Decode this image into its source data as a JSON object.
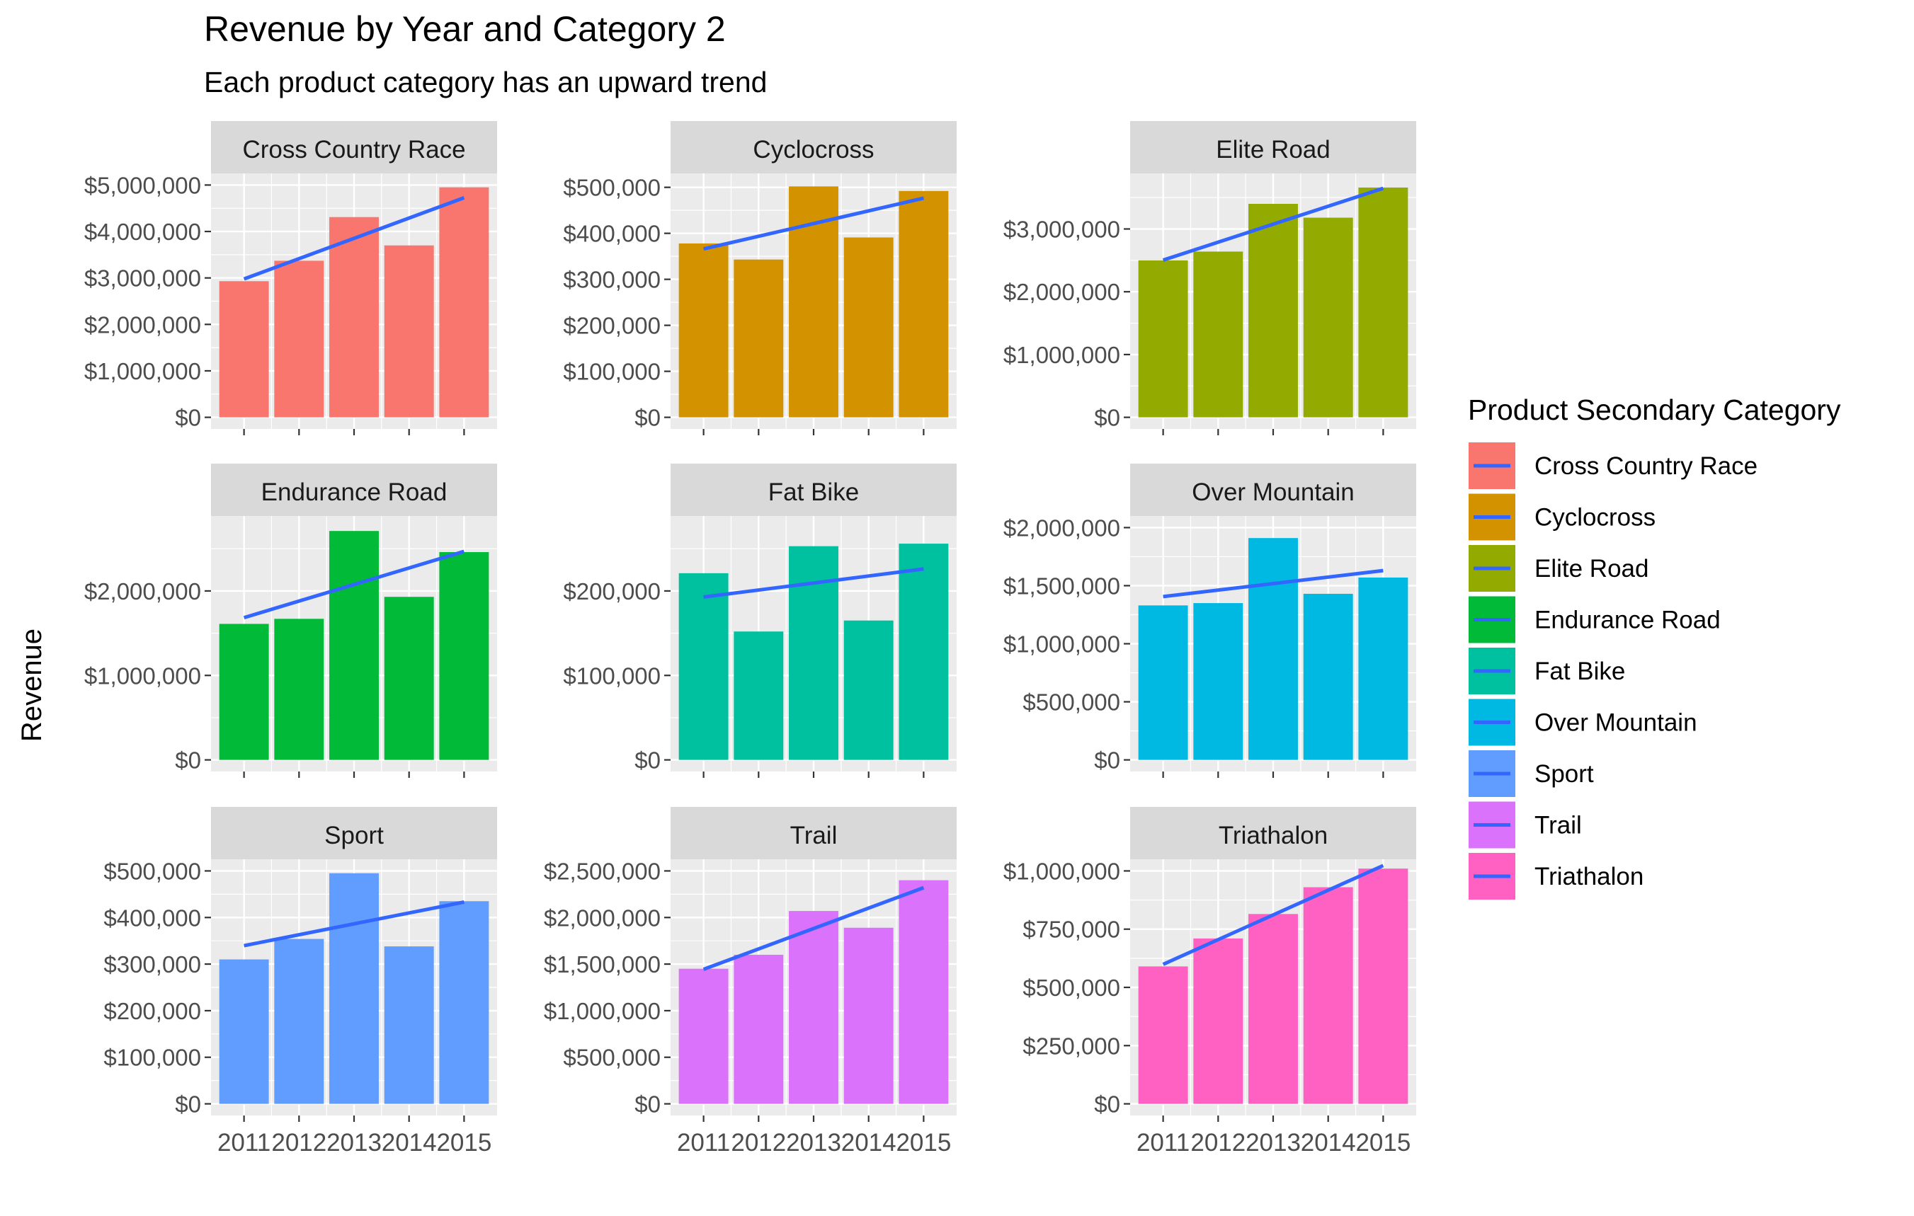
{
  "chart_data": {
    "type": "bar",
    "title": "Revenue by Year and Category 2",
    "subtitle": "Each product category has an upward trend",
    "ylabel": "Revenue",
    "xlabel": "",
    "legend": {
      "title": "Product Secondary Category",
      "placement": "right"
    },
    "categories": [
      "2011",
      "2012",
      "2013",
      "2014",
      "2015"
    ],
    "trend_line_color": "#3366FF",
    "panel_background": "#EBEBEB",
    "strip_background": "#D9D9D9",
    "series": [
      {
        "name": "Cross Country Race",
        "color": "#F8766D",
        "values": [
          2930000,
          3370000,
          4310000,
          3700000,
          4950000
        ],
        "ylim": [
          0,
          5000000
        ],
        "ticks": [
          0,
          1000000,
          2000000,
          3000000,
          4000000,
          5000000
        ],
        "tick_labels": [
          "$0",
          "$1,000,000",
          "$2,000,000",
          "$3,000,000",
          "$4,000,000",
          "$5,000,000"
        ]
      },
      {
        "name": "Cyclocross",
        "color": "#D39200",
        "values": [
          378000,
          343000,
          502000,
          391000,
          492000
        ],
        "ylim": [
          0,
          505000
        ],
        "ticks": [
          0,
          100000,
          200000,
          300000,
          400000,
          500000
        ],
        "tick_labels": [
          "$0",
          "$100,000",
          "$200,000",
          "$300,000",
          "$400,000",
          "$500,000"
        ]
      },
      {
        "name": "Elite Road",
        "color": "#93AA00",
        "values": [
          2500000,
          2640000,
          3400000,
          3180000,
          3660000
        ],
        "ylim": [
          0,
          3700000
        ],
        "ticks": [
          0,
          1000000,
          2000000,
          3000000
        ],
        "tick_labels": [
          "$0",
          "$1,000,000",
          "$2,000,000",
          "$3,000,000"
        ]
      },
      {
        "name": "Endurance Road",
        "color": "#00BA38",
        "values": [
          1610000,
          1670000,
          2710000,
          1930000,
          2460000
        ],
        "ylim": [
          0,
          2750000
        ],
        "ticks": [
          0,
          1000000,
          2000000
        ],
        "tick_labels": [
          "$0",
          "$1,000,000",
          "$2,000,000"
        ]
      },
      {
        "name": "Fat Bike",
        "color": "#00C19F",
        "values": [
          221000,
          152000,
          253000,
          165000,
          256000
        ],
        "ylim": [
          0,
          275000
        ],
        "ticks": [
          0,
          100000,
          200000
        ],
        "tick_labels": [
          "$0",
          "$100,000",
          "$200,000"
        ]
      },
      {
        "name": "Over Mountain",
        "color": "#00B9E3",
        "values": [
          1330000,
          1350000,
          1910000,
          1430000,
          1570000
        ],
        "ylim": [
          0,
          2000000
        ],
        "ticks": [
          0,
          500000,
          1000000,
          1500000,
          2000000
        ],
        "tick_labels": [
          "$0",
          "$500,000",
          "$1,000,000",
          "$1,500,000",
          "$2,000,000"
        ]
      },
      {
        "name": "Sport",
        "color": "#619CFF",
        "values": [
          310000,
          354000,
          495000,
          338000,
          435000
        ],
        "ylim": [
          0,
          500000
        ],
        "ticks": [
          0,
          100000,
          200000,
          300000,
          400000,
          500000
        ],
        "tick_labels": [
          "$0",
          "$100,000",
          "$200,000",
          "$300,000",
          "$400,000",
          "$500,000"
        ]
      },
      {
        "name": "Trail",
        "color": "#DB72FB",
        "values": [
          1450000,
          1600000,
          2070000,
          1890000,
          2400000
        ],
        "ylim": [
          0,
          2500000
        ],
        "ticks": [
          0,
          500000,
          1000000,
          1500000,
          2000000,
          2500000
        ],
        "tick_labels": [
          "$0",
          "$500,000",
          "$1,000,000",
          "$1,500,000",
          "$2,000,000",
          "$2,500,000"
        ]
      },
      {
        "name": "Triathalon",
        "color": "#FF61C3",
        "values": [
          590000,
          710000,
          815000,
          930000,
          1010000
        ],
        "ylim": [
          0,
          1000000
        ],
        "ticks": [
          0,
          250000,
          500000,
          750000,
          1000000
        ],
        "tick_labels": [
          "$0",
          "$250,000",
          "$500,000",
          "$750,000",
          "$1,000,000"
        ]
      }
    ]
  }
}
